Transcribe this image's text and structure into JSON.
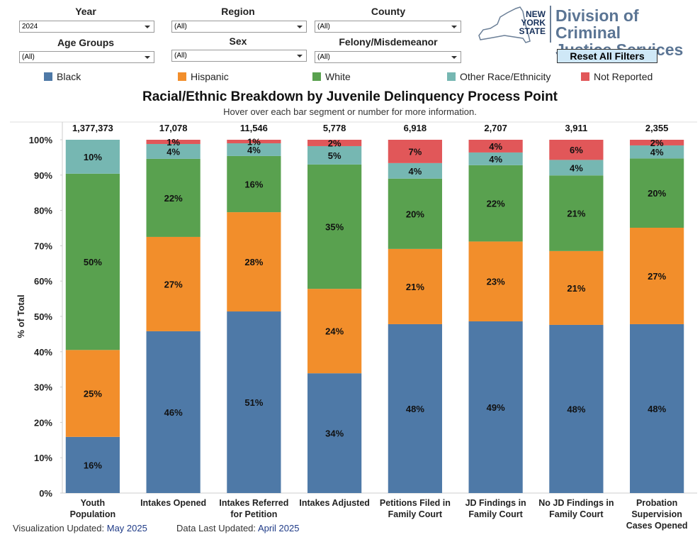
{
  "filters": [
    {
      "label": "Year",
      "value": "2024"
    },
    {
      "label": "Region",
      "value": "(All)"
    },
    {
      "label": "County",
      "value": "(All)"
    },
    {
      "label": "Age Groups",
      "value": "(All)"
    },
    {
      "label": "Sex",
      "value": "(All)"
    },
    {
      "label": "Felony/Misdemeanor",
      "value": "(All)"
    }
  ],
  "logo": {
    "state": "NEW\nYORK\nSTATE",
    "agency": "Division of Criminal\nJustice Services"
  },
  "reset_button": "Reset All Filters",
  "footer": {
    "viz_updated_label": "Visualization Updated:",
    "viz_updated": "May 2025",
    "data_updated_label": "Data Last Updated:",
    "data_updated": "April 2025"
  },
  "chart_data": {
    "type": "stacked_bar",
    "title": "Racial/Ethnic Breakdown by Juvenile Delinquency Process Point",
    "subtitle": "Hover over each bar segment or number for more information.",
    "y_label": "% of Total",
    "categories": [
      "Youth\nPopulation",
      "Intakes Opened",
      "Intakes Referred\nfor Petition",
      "Intakes Adjusted",
      "Petitions Filed in\nFamily Court",
      "JD Findings in\nFamily Court",
      "No JD Findings in\nFamily Court",
      "Probation\nSupervision\nCases Opened"
    ],
    "totals": [
      {
        "value": 1377373,
        "label": "1,377,373"
      },
      {
        "value": 17078,
        "label": "17,078"
      },
      {
        "value": 11546,
        "label": "11,546"
      },
      {
        "value": 5778,
        "label": "5,778"
      },
      {
        "value": 6918,
        "label": "6,918"
      },
      {
        "value": 2707,
        "label": "2,707"
      },
      {
        "value": 3911,
        "label": "3,911"
      },
      {
        "value": 2355,
        "label": "2,355"
      }
    ],
    "series": [
      {
        "name": "Black",
        "color": "#4e79a7",
        "values": [
          15.9,
          45.8,
          51.4,
          33.9,
          47.8,
          48.6,
          47.6,
          47.8
        ],
        "value_labels": [
          "16%",
          "46%",
          "51%",
          "34%",
          "48%",
          "49%",
          "48%",
          "48%"
        ]
      },
      {
        "name": "Hispanic",
        "color": "#f28e2b",
        "values": [
          24.6,
          26.7,
          28.1,
          23.9,
          21.3,
          22.6,
          20.9,
          27.3
        ],
        "value_labels": [
          "25%",
          "27%",
          "28%",
          "24%",
          "21%",
          "23%",
          "21%",
          "27%"
        ]
      },
      {
        "name": "White",
        "color": "#59a14f",
        "values": [
          49.9,
          22.1,
          15.9,
          35.2,
          19.9,
          21.6,
          21.4,
          19.6
        ],
        "value_labels": [
          "50%",
          "22%",
          "16%",
          "35%",
          "20%",
          "22%",
          "21%",
          "20%"
        ]
      },
      {
        "name": "Other Race/Ethnicity",
        "color": "#76b7b2",
        "values": [
          9.6,
          4.2,
          3.6,
          5.2,
          4.4,
          3.6,
          4.4,
          3.7
        ],
        "value_labels": [
          "10%",
          "4%",
          "4%",
          "5%",
          "4%",
          "4%",
          "4%",
          "4%"
        ]
      },
      {
        "name": "Not Reported",
        "color": "#e15759",
        "values": [
          0,
          1.2,
          1.0,
          1.8,
          6.6,
          3.6,
          5.7,
          1.6
        ],
        "value_labels": [
          null,
          "1%",
          "1%",
          "2%",
          "7%",
          "4%",
          "6%",
          "2%"
        ]
      }
    ],
    "ylim": [
      0,
      100
    ],
    "yticks": [
      {
        "value": 0,
        "label": "0%"
      },
      {
        "value": 10,
        "label": "10%"
      },
      {
        "value": 20,
        "label": "20%"
      },
      {
        "value": 30,
        "label": "30%"
      },
      {
        "value": 40,
        "label": "40%"
      },
      {
        "value": 50,
        "label": "50%"
      },
      {
        "value": 60,
        "label": "60%"
      },
      {
        "value": 70,
        "label": "70%"
      },
      {
        "value": 80,
        "label": "80%"
      },
      {
        "value": 90,
        "label": "90%"
      },
      {
        "value": 100,
        "label": "100%"
      }
    ],
    "grid": false,
    "legend": "top"
  }
}
